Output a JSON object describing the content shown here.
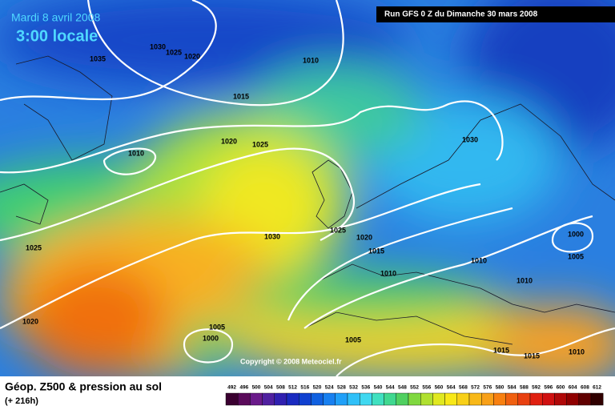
{
  "header": {
    "date": "Mardi 8 avril 2008",
    "time": "3:00 locale",
    "run": "Run GFS 0 Z du Dimanche 30 mars 2008"
  },
  "copyright": "Copyright © 2008 Meteociel.fr",
  "footer": {
    "title": "Géop. Z500 & pression au sol",
    "subtitle": "(+ 216h)"
  },
  "isobar_labels": [
    "1035",
    "1030",
    "1025",
    "1020",
    "1010",
    "1015",
    "1020",
    "1025",
    "1010",
    "1030",
    "1025",
    "1030",
    "1025",
    "1020",
    "1015",
    "1010",
    "1010",
    "1000",
    "1005",
    "1010",
    "1020",
    "1005",
    "1000",
    "1005",
    "1015",
    "1015",
    "1010"
  ],
  "legend": {
    "values": [
      492,
      496,
      500,
      504,
      508,
      512,
      516,
      520,
      524,
      528,
      532,
      536,
      540,
      544,
      548,
      552,
      556,
      560,
      564,
      568,
      572,
      576,
      580,
      584,
      588,
      592,
      596,
      600,
      604,
      608,
      612
    ],
    "colors": [
      "#3a0030",
      "#5a0a5a",
      "#6a1a8a",
      "#5020a0",
      "#3020b0",
      "#1a2ac0",
      "#1040d0",
      "#1060e0",
      "#1880f0",
      "#20a0f8",
      "#30c0f8",
      "#40d8f0",
      "#40e0c0",
      "#40d890",
      "#50d060",
      "#80d840",
      "#b0e030",
      "#e0e820",
      "#f8e818",
      "#f8d018",
      "#f8b818",
      "#f8a018",
      "#f88010",
      "#f06010",
      "#e84010",
      "#e02010",
      "#d01010",
      "#b00808",
      "#900000",
      "#600000",
      "#300000"
    ]
  }
}
